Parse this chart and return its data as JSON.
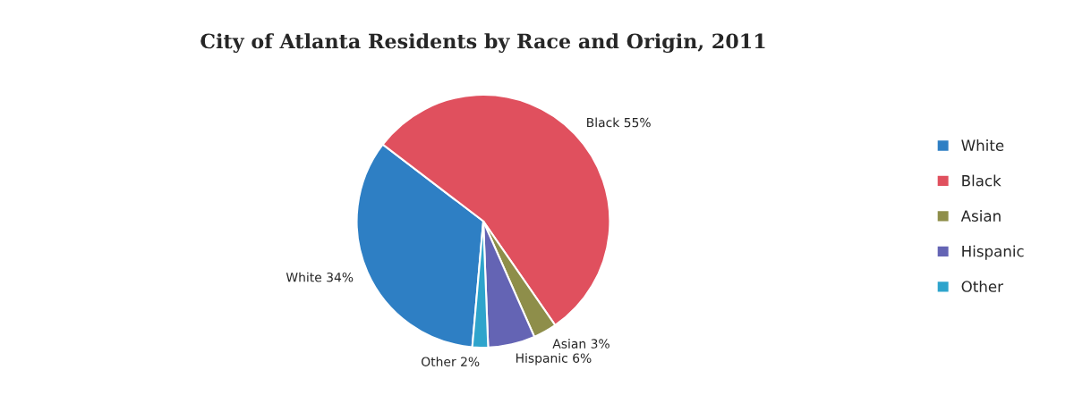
{
  "chart_data": {
    "type": "pie",
    "title": "City of Atlanta Residents by Race and Origin, 2011",
    "categories": [
      "White",
      "Black",
      "Asian",
      "Hispanic",
      "Other"
    ],
    "values": [
      34,
      55,
      3,
      6,
      2
    ],
    "colors": [
      "#2e7fc4",
      "#e0505e",
      "#8e8e4a",
      "#6464b4",
      "#2ea4cc"
    ],
    "value_labels": [
      "White 34%",
      "Black 55%",
      "Asian 3%",
      "Hispanic 6%",
      "Other 2%"
    ],
    "legend": "right"
  }
}
